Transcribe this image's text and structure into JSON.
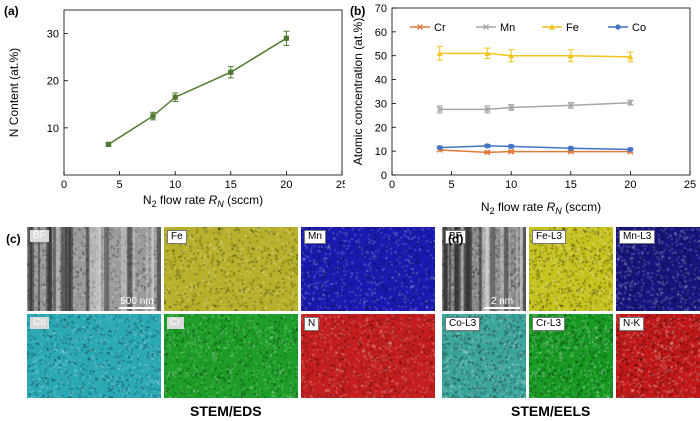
{
  "panels": {
    "a": "(a)",
    "b": "(b)",
    "c": "(c)",
    "d": "(d)"
  },
  "chart_data": [
    {
      "type": "line",
      "panel": "(a)",
      "ylabel": "N Content (at.%)",
      "xlabel_parts": [
        "N",
        "2",
        " flow rate ",
        "R",
        "N",
        " (sccm)"
      ],
      "xlim": [
        0,
        25
      ],
      "ylim": [
        0,
        35
      ],
      "xticks": [
        0,
        5,
        10,
        15,
        20,
        25
      ],
      "yticks": [
        10,
        20,
        30
      ],
      "series": [
        {
          "x": [
            4,
            8,
            10,
            15,
            20
          ],
          "values": [
            6.5,
            12.5,
            16.5,
            21.8,
            29.0
          ],
          "err": [
            0.3,
            0.8,
            0.9,
            1.2,
            1.5
          ],
          "color": "#4f7a2e"
        }
      ]
    },
    {
      "type": "line",
      "panel": "(b)",
      "ylabel": "Atomic concentration (at.%)",
      "xlabel_parts": [
        "N",
        "2",
        " flow rate ",
        "R",
        "N",
        " (sccm)"
      ],
      "xlim": [
        0,
        25
      ],
      "ylim": [
        0,
        70
      ],
      "xticks": [
        0,
        5,
        10,
        15,
        20,
        25
      ],
      "yticks": [
        0,
        10,
        20,
        30,
        40,
        50,
        60,
        70
      ],
      "legend_position": "top",
      "x": [
        4,
        8,
        10,
        15,
        20
      ],
      "series": [
        {
          "name": "Cr",
          "values": [
            10.5,
            9.5,
            9.8,
            9.8,
            9.8
          ],
          "err": [
            0.5,
            0.5,
            0.5,
            0.5,
            0.5
          ],
          "color": "#e07b39",
          "marker": "x"
        },
        {
          "name": "Mn",
          "values": [
            27.5,
            27.5,
            28.3,
            29.2,
            30.3
          ],
          "err": [
            1.5,
            1.5,
            1.2,
            1.2,
            1.0
          ],
          "color": "#a6a6a6",
          "marker": "x"
        },
        {
          "name": "Fe",
          "values": [
            51.0,
            51.0,
            50.0,
            50.0,
            49.5
          ],
          "err": [
            2.8,
            2.2,
            2.5,
            2.5,
            2.0
          ],
          "color": "#f0c419",
          "marker": "triangle"
        },
        {
          "name": "Co",
          "values": [
            11.5,
            12.2,
            12.0,
            11.2,
            10.7
          ],
          "err": [
            0.6,
            0.6,
            0.6,
            0.6,
            0.6
          ],
          "color": "#4472c4",
          "marker": "circle"
        }
      ]
    }
  ],
  "eds_maps": [
    {
      "label": "BF",
      "color": "#9a9a9a",
      "tag": "ghost",
      "scalebar": "500 nm"
    },
    {
      "label": "Fe",
      "color": "#b8b02a",
      "tag": "dark"
    },
    {
      "label": "Mn",
      "color": "#1a1ab0",
      "tag": "dark"
    },
    {
      "label": "Co",
      "color": "#2aa8b4",
      "tag": "ghost"
    },
    {
      "label": "Cr",
      "color": "#1e9e28",
      "tag": "ghost"
    },
    {
      "label": "N",
      "color": "#c41e1e",
      "tag": "dark"
    }
  ],
  "eels_maps": [
    {
      "label": "BF",
      "color": "#8a8a8a",
      "tag": "dark",
      "scalebar": "2 nm"
    },
    {
      "label": "Fe-L3",
      "color": "#c6c21c",
      "tag": "dark"
    },
    {
      "label": "Mn-L3",
      "color": "#161680",
      "tag": "dark"
    },
    {
      "label": "Co-L3",
      "color": "#3aa59a",
      "tag": "dark"
    },
    {
      "label": "Cr-L3",
      "color": "#169a22",
      "tag": "dark"
    },
    {
      "label": "N-K",
      "color": "#c21818",
      "tag": "dark"
    }
  ],
  "captions": {
    "eds": "STEM/EDS",
    "eels": "STEM/EELS"
  }
}
